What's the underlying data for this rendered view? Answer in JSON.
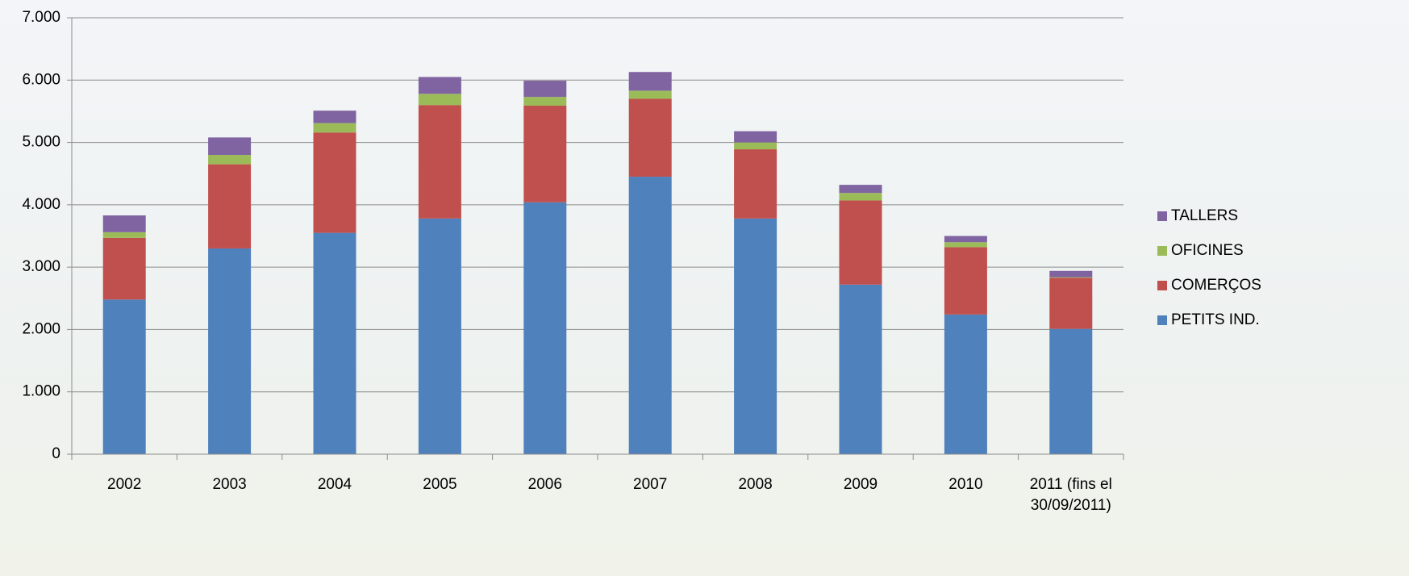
{
  "chart_data": {
    "type": "stacked-bar",
    "categories": [
      "2002",
      "2003",
      "2004",
      "2005",
      "2006",
      "2007",
      "2008",
      "2009",
      "2010",
      "2011 (fins el 30/09/2011)"
    ],
    "series": [
      {
        "name": "PETITS IND.",
        "color": "#4f81bd",
        "values": [
          2480,
          3300,
          3550,
          3780,
          4040,
          4450,
          3780,
          2720,
          2240,
          2010
        ]
      },
      {
        "name": "COMERÇOS",
        "color": "#c0504d",
        "values": [
          990,
          1350,
          1610,
          1820,
          1550,
          1250,
          1110,
          1350,
          1080,
          820
        ]
      },
      {
        "name": "OFICINES",
        "color": "#9bbb59",
        "values": [
          90,
          150,
          150,
          180,
          140,
          130,
          110,
          120,
          80,
          10
        ]
      },
      {
        "name": "TALLERS",
        "color": "#8064a2",
        "values": [
          270,
          280,
          200,
          270,
          260,
          300,
          180,
          130,
          100,
          100
        ]
      }
    ],
    "ylim": [
      0,
      7000
    ],
    "yticks": [
      0,
      {
        "value": 1000,
        "label": "1.000"
      },
      {
        "value": 2000,
        "label": "2.000"
      },
      {
        "value": 3000,
        "label": "3.000"
      },
      {
        "value": 4000,
        "label": "4.000"
      },
      {
        "value": 5000,
        "label": "5.000"
      },
      {
        "value": 6000,
        "label": "6.000"
      },
      {
        "value": 7000,
        "label": "7.000"
      }
    ],
    "grid": true,
    "legend": "right"
  }
}
